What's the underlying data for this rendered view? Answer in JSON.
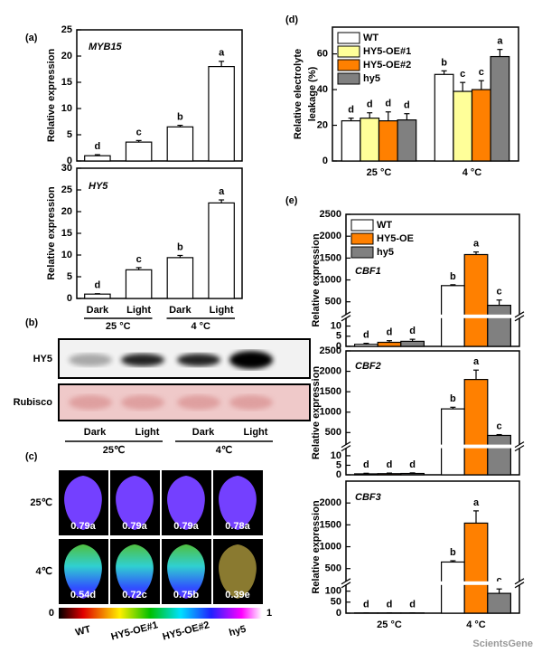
{
  "chart_data": [
    {
      "type": "bar",
      "panel": "(a)",
      "annotation": "MYB15",
      "ylabel": "Relative expression",
      "values": [
        1.0,
        3.6,
        6.5,
        18.0
      ],
      "errors": [
        0.2,
        0.3,
        0.3,
        1.0
      ],
      "letters": [
        "d",
        "c",
        "b",
        "a"
      ],
      "color": "#ffffff",
      "ylim": [
        0,
        25
      ],
      "yticks": [
        0,
        5,
        10,
        15,
        20,
        25
      ]
    },
    {
      "type": "bar",
      "annotation": "HY5",
      "ylabel": "Relative expression",
      "categories": [
        "Dark",
        "Light",
        "Dark",
        "Light"
      ],
      "groups": [
        "25 °C",
        "4 °C"
      ],
      "values": [
        1.0,
        6.6,
        9.4,
        22.0
      ],
      "errors": [
        0.1,
        0.5,
        0.5,
        0.7
      ],
      "letters": [
        "d",
        "c",
        "b",
        "a"
      ],
      "color": "#ffffff",
      "ylim": [
        0,
        30
      ],
      "yticks": [
        0,
        5,
        10,
        15,
        20,
        25,
        30
      ]
    },
    {
      "type": "bar",
      "panel": "(d)",
      "ylabel": [
        "Relative electrolyte",
        "leakage (%)"
      ],
      "categories": [
        "25 °C",
        "4 °C"
      ],
      "series": [
        {
          "name": "WT",
          "color": "#ffffff",
          "values": [
            22.5,
            48.5
          ],
          "errors": [
            1.5,
            2
          ],
          "letters": [
            "d",
            "b"
          ]
        },
        {
          "name": "HY5-OE#1",
          "color": "#ffff99",
          "values": [
            24,
            39
          ],
          "errors": [
            3,
            5
          ],
          "letters": [
            "d",
            "c"
          ]
        },
        {
          "name": "HY5-OE#2",
          "color": "#ff8000",
          "values": [
            22.5,
            40
          ],
          "errors": [
            5,
            5
          ],
          "letters": [
            "d",
            "c"
          ]
        },
        {
          "name": "hy5",
          "color": "#808080",
          "values": [
            23,
            58.5
          ],
          "errors": [
            3.5,
            4
          ],
          "letters": [
            "d",
            "a"
          ]
        }
      ],
      "legend": "upper left",
      "ylim": [
        0,
        75
      ],
      "yticks": [
        0,
        20,
        40,
        60
      ]
    },
    {
      "type": "bar",
      "panel": "(e)",
      "annotation": "CBF1",
      "ylabel": "Relative expression",
      "series": [
        {
          "name": "WT",
          "color": "#ffffff",
          "values": [
            1,
            870
          ],
          "errors": [
            0.5,
            20
          ],
          "letters": [
            "d",
            "b"
          ]
        },
        {
          "name": "HY5-OE",
          "color": "#ff8000",
          "values": [
            2,
            1580
          ],
          "errors": [
            0.8,
            60
          ],
          "letters": [
            "d",
            "a"
          ]
        },
        {
          "name": "hy5",
          "color": "#808080",
          "values": [
            2.5,
            420
          ],
          "errors": [
            1,
            120
          ],
          "letters": [
            "d",
            "c"
          ]
        }
      ],
      "legend": "upper left",
      "ylim": [
        0,
        2500
      ],
      "ybreak": [
        13,
        250
      ],
      "yticks": [
        0,
        5,
        10,
        500,
        1000,
        1500,
        2000,
        2500
      ]
    },
    {
      "type": "bar",
      "annotation": "CBF2",
      "ylabel": "Relative expression",
      "series": [
        {
          "color": "#ffffff",
          "values": [
            0.5,
            1080
          ],
          "errors": [
            0.3,
            40
          ],
          "letters": [
            "d",
            "b"
          ]
        },
        {
          "color": "#ff8000",
          "values": [
            0.6,
            1800
          ],
          "errors": [
            0.3,
            230
          ],
          "letters": [
            "d",
            "a"
          ]
        },
        {
          "color": "#808080",
          "values": [
            0.7,
            430
          ],
          "errors": [
            0.3,
            20
          ],
          "letters": [
            "d",
            "c"
          ]
        }
      ],
      "ylim": [
        0,
        2500
      ],
      "ybreak": [
        13,
        250
      ],
      "yticks": [
        0,
        5,
        10,
        500,
        1000,
        1500,
        2000,
        2500
      ]
    },
    {
      "type": "bar",
      "annotation": "CBF3",
      "ylabel": "Relative expression",
      "categories": [
        "25 °C",
        "4 °C"
      ],
      "series": [
        {
          "color": "#ffffff",
          "values": [
            1,
            650
          ],
          "errors": [
            0.5,
            30
          ],
          "letters": [
            "d",
            "b"
          ]
        },
        {
          "color": "#ff8000",
          "values": [
            1,
            1540
          ],
          "errors": [
            0.5,
            280
          ],
          "letters": [
            "d",
            "a"
          ]
        },
        {
          "color": "#808080",
          "values": [
            1,
            90
          ],
          "errors": [
            0.5,
            20
          ],
          "letters": [
            "d",
            "c"
          ]
        }
      ],
      "ylim": [
        0,
        2500
      ],
      "ybreak": [
        120,
        250
      ],
      "yticks": [
        0,
        50,
        100,
        500,
        1000,
        1500,
        2000
      ]
    }
  ],
  "blot": {
    "panel": "(b)",
    "rows": [
      "HY5",
      "Rubisco"
    ],
    "lanes": [
      "Dark",
      "Light",
      "Dark",
      "Light"
    ],
    "groups": [
      "25℃",
      "4℃"
    ]
  },
  "imaging": {
    "panel": "(c)",
    "rows": [
      {
        "label": "25℃",
        "values": [
          "0.79a",
          "0.79a",
          "0.79a",
          "0.78a"
        ]
      },
      {
        "label": "4℃",
        "values": [
          "0.54d",
          "0.72c",
          "0.75b",
          "0.39e"
        ]
      }
    ],
    "genotypes": [
      "WT",
      "HY5-OE#1",
      "HY5-OE#2",
      "hy5"
    ],
    "colorbar_ticks": [
      0,
      1
    ]
  },
  "watermark": "ScientsGene"
}
